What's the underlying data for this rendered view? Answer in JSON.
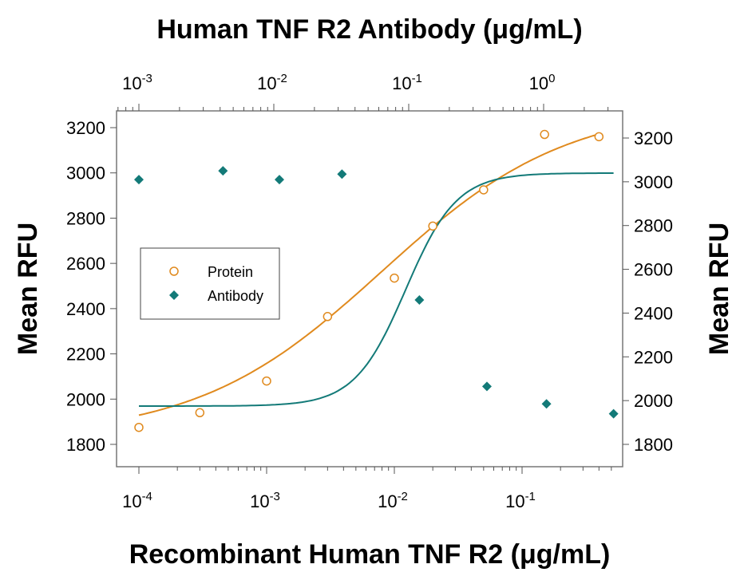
{
  "chart_data": {
    "type": "scatter",
    "title_top": "Human TNF R2 Antibody (μg/mL)",
    "xlabel_bottom": "Recombinant Human TNF R2 (μg/mL)",
    "ylabel_left": "Mean RFU",
    "ylabel_right": "Mean RFU",
    "x_bottom_scale": "log",
    "x_bottom_range": [
      6e-05,
      0.6
    ],
    "x_bottom_ticks": [
      {
        "base": "10",
        "exp": "-4",
        "value": 0.0001
      },
      {
        "base": "10",
        "exp": "-3",
        "value": 0.001
      },
      {
        "base": "10",
        "exp": "-2",
        "value": 0.01
      },
      {
        "base": "10",
        "exp": "-1",
        "value": 0.1
      }
    ],
    "x_top_scale": "log",
    "x_top_ticks": [
      {
        "base": "10",
        "exp": "-3",
        "value": 0.001
      },
      {
        "base": "10",
        "exp": "-2",
        "value": 0.01
      },
      {
        "base": "10",
        "exp": "-1",
        "value": 0.1
      },
      {
        "base": "10",
        "exp": "0",
        "value": 1
      }
    ],
    "y_left_range": [
      1700,
      3250
    ],
    "y_left_ticks": [
      "1800",
      "2000",
      "2200",
      "2400",
      "2600",
      "2800",
      "3000",
      "3200"
    ],
    "y_right_range": [
      1650,
      3300
    ],
    "y_right_ticks": [
      "1800",
      "2000",
      "2200",
      "2400",
      "2600",
      "2800",
      "3000",
      "3200"
    ],
    "grid": false,
    "legend_position": "middle-left",
    "series": [
      {
        "name": "Protein",
        "marker": "open-circle",
        "color": "#E08A1E",
        "x_axis": "bottom",
        "y_axis": "left",
        "points": [
          {
            "x": 0.0001,
            "y": 1875
          },
          {
            "x": 0.0003,
            "y": 1940
          },
          {
            "x": 0.001,
            "y": 2080
          },
          {
            "x": 0.003,
            "y": 2365
          },
          {
            "x": 0.01,
            "y": 2535
          },
          {
            "x": 0.02,
            "y": 2765
          },
          {
            "x": 0.05,
            "y": 2925
          },
          {
            "x": 0.15,
            "y": 3170
          },
          {
            "x": 0.4,
            "y": 3160
          }
        ],
        "fit": {
          "bottom": 1830,
          "top": 3300,
          "ec50": 0.008,
          "hill": 0.6
        }
      },
      {
        "name": "Antibody",
        "marker": "filled-diamond",
        "color": "#137A78",
        "x_axis": "top",
        "y_axis": "right",
        "points": [
          {
            "x": 0.001,
            "y": 3010
          },
          {
            "x": 0.0042,
            "y": 3050
          },
          {
            "x": 0.011,
            "y": 3010
          },
          {
            "x": 0.032,
            "y": 3035
          },
          {
            "x": 0.12,
            "y": 2460
          },
          {
            "x": 0.38,
            "y": 2065
          },
          {
            "x": 1.05,
            "y": 1985
          },
          {
            "x": 3.3,
            "y": 1940
          }
        ],
        "fit": {
          "bottom": 1975,
          "top": 3040,
          "ec50": 0.095,
          "hill": 2.3
        }
      }
    ]
  }
}
